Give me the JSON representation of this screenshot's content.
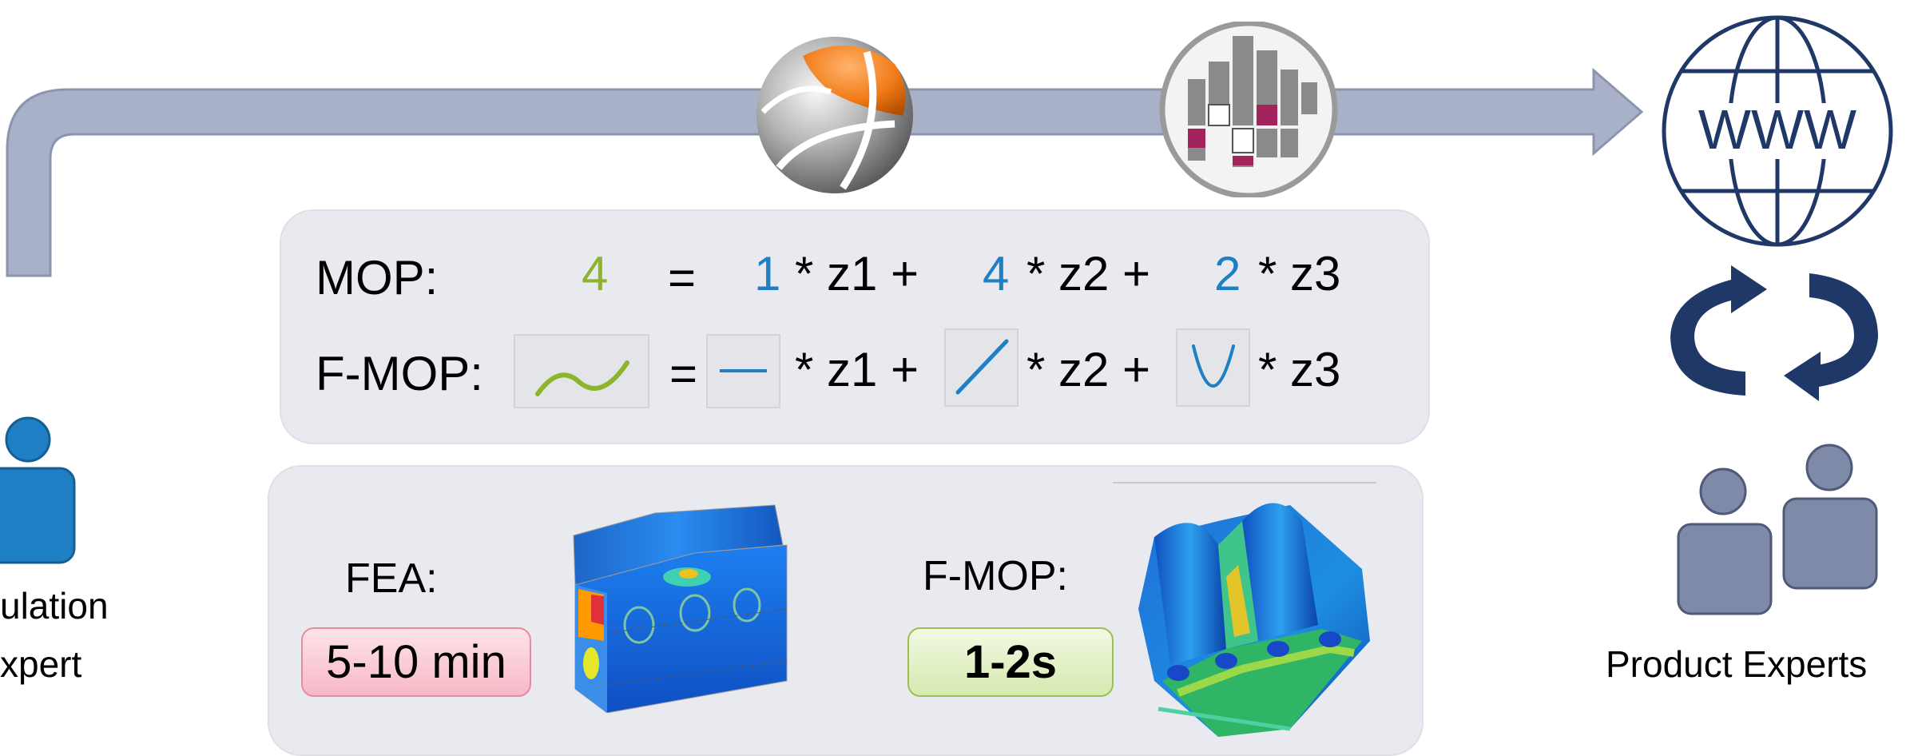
{
  "colors": {
    "arrow": "#a9b1c8",
    "panel": "#e9eaef",
    "green": "#8db42a",
    "blue": "#1f7fc4",
    "person_left": "#1f7fc4",
    "people_right": "#7f8aa8",
    "cycle_arrows": "#1f3868"
  },
  "icons": {
    "optislang_logo": "sphere-logo-icon",
    "statistics_logo": "histogram-logo-icon",
    "web": "globe-icon",
    "sync": "cycle-arrows-icon",
    "simulation_expert": "person-icon",
    "product_experts": "people-icon"
  },
  "left": {
    "role_line1": "ulation",
    "role_line2": "xpert"
  },
  "right": {
    "globe_text": "WWW",
    "role": "Product Experts"
  },
  "equations": {
    "mop_label": "MOP:",
    "fmop_label": "F-MOP:",
    "mop_result": "4",
    "equals": "=",
    "coef1": "1",
    "coef2": "4",
    "coef3": "2",
    "term1": "* z1 +",
    "term2": "* z2 +",
    "term3": "* z3"
  },
  "comparison": {
    "fea_label": "FEA:",
    "fea_time": "5-10 min",
    "fmop_label": "F-MOP:",
    "fmop_time": "1-2s"
  }
}
